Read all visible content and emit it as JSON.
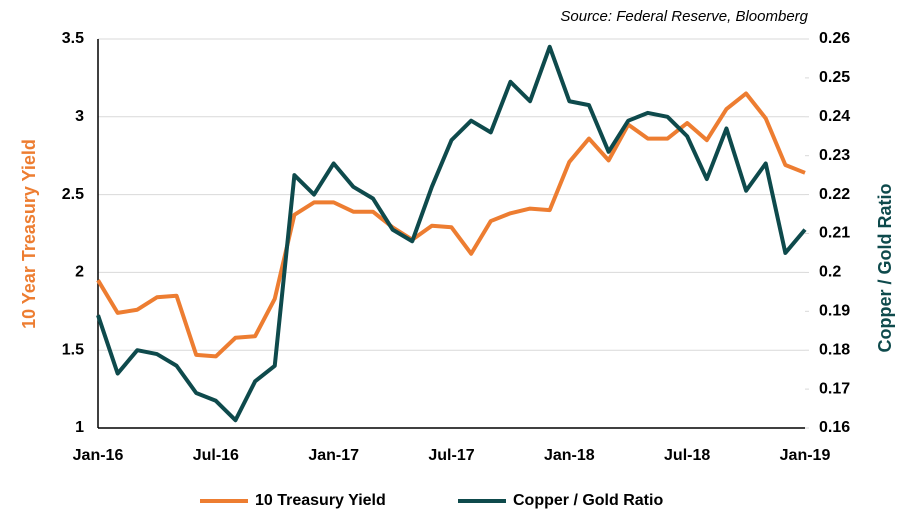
{
  "chart_data": {
    "type": "line",
    "source": "Source: Federal Reserve, Bloomberg",
    "y_label": "10 Year Treasury Yield",
    "y2_label": "Copper / Gold Ratio",
    "categories": [
      "Jan-16",
      null,
      null,
      null,
      null,
      null,
      "Jul-16",
      null,
      null,
      null,
      null,
      null,
      "Jan-17",
      null,
      null,
      null,
      null,
      null,
      "Jul-17",
      null,
      null,
      null,
      null,
      null,
      "Jan-18",
      null,
      null,
      null,
      null,
      null,
      "Jul-18",
      null,
      null,
      null,
      null,
      null,
      "Jan-19"
    ],
    "series": [
      {
        "name": "10 Treasury Yield",
        "color": "#ED7D31",
        "axis": "y",
        "values": [
          1.95,
          1.74,
          1.76,
          1.84,
          1.85,
          1.47,
          1.46,
          1.58,
          1.59,
          1.83,
          2.37,
          2.45,
          2.45,
          2.39,
          2.39,
          2.29,
          2.21,
          2.3,
          2.29,
          2.12,
          2.33,
          2.38,
          2.41,
          2.4,
          2.71,
          2.86,
          2.72,
          2.95,
          2.86,
          2.86,
          2.96,
          2.85,
          3.05,
          3.15,
          2.99,
          2.69,
          2.64
        ]
      },
      {
        "name": "Copper / Gold Ratio",
        "color": "#0E4A4C",
        "axis": "y2",
        "values": [
          0.189,
          0.174,
          0.18,
          0.179,
          0.176,
          0.169,
          0.167,
          0.162,
          0.172,
          0.176,
          0.225,
          0.22,
          0.228,
          0.222,
          0.219,
          0.211,
          0.208,
          0.222,
          0.234,
          0.239,
          0.236,
          0.249,
          0.244,
          0.258,
          0.244,
          0.243,
          0.231,
          0.239,
          0.241,
          0.24,
          0.235,
          0.224,
          0.237,
          0.221,
          0.228,
          0.205,
          0.211
        ]
      }
    ],
    "ylim": [
      1,
      3.5
    ],
    "yticks": [
      1,
      1.5,
      2,
      2.5,
      3,
      3.5
    ],
    "y2lim": [
      0.16,
      0.26
    ],
    "y2ticks": [
      0.16,
      0.17,
      0.18,
      0.19,
      0.2,
      0.21,
      0.22,
      0.23,
      0.24,
      0.25,
      0.26
    ],
    "grid": true,
    "legend": "bottom"
  }
}
